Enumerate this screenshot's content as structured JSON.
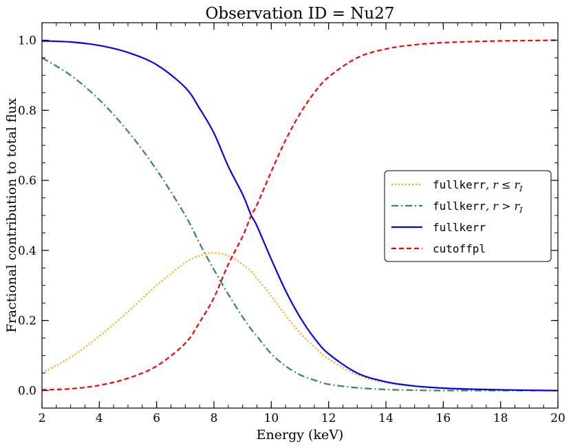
{
  "chart_data": {
    "type": "line",
    "title": "Observation ID = Nu27",
    "xlabel": "Energy (keV)",
    "ylabel": "Fractional contribution to total flux",
    "xlim": [
      2,
      20
    ],
    "ylim": [
      -0.05,
      1.05
    ],
    "xticks": [
      2,
      4,
      6,
      8,
      10,
      12,
      14,
      16,
      18,
      20
    ],
    "xtick_labels": [
      "2",
      "4",
      "6",
      "8",
      "10",
      "12",
      "14",
      "16",
      "18",
      "20"
    ],
    "yticks": [
      0.0,
      0.2,
      0.4,
      0.6,
      0.8,
      1.0
    ],
    "ytick_labels": [
      "0.0",
      "0.2",
      "0.4",
      "0.6",
      "0.8",
      "1.0"
    ],
    "legend_position": "center-right",
    "x": [
      2,
      3,
      4,
      5,
      6,
      7,
      7.5,
      8,
      8.5,
      9,
      9.3,
      9.5,
      10,
      10.5,
      11,
      11.5,
      12,
      13,
      14,
      15,
      16,
      17,
      18,
      19,
      20
    ],
    "series": [
      {
        "name": "fullkerr, r ≤ r_I",
        "legend_mono": "fullkerr",
        "legend_math": ", r ≤ r",
        "legend_sub": "I",
        "color": "#ffa500",
        "dash": "dotted",
        "values": [
          0.05,
          0.095,
          0.155,
          0.225,
          0.3,
          0.365,
          0.385,
          0.393,
          0.385,
          0.36,
          0.34,
          0.32,
          0.27,
          0.215,
          0.165,
          0.125,
          0.09,
          0.045,
          0.022,
          0.012,
          0.006,
          0.003,
          0.002,
          0.001,
          0.0
        ]
      },
      {
        "name": "fullkerr, r > r_I",
        "legend_mono": "fullkerr",
        "legend_math": ", r > r",
        "legend_sub": "I",
        "color": "#2e8b57",
        "dash": "dashdot",
        "values": [
          0.95,
          0.9,
          0.83,
          0.74,
          0.63,
          0.5,
          0.42,
          0.345,
          0.275,
          0.21,
          0.175,
          0.155,
          0.105,
          0.07,
          0.045,
          0.03,
          0.018,
          0.008,
          0.003,
          0.001,
          0.0,
          0.0,
          0.0,
          0.0,
          0.0
        ]
      },
      {
        "name": "fullkerr",
        "legend_mono": "fullkerr",
        "legend_math": "",
        "legend_sub": "",
        "color": "#0000ff",
        "dash": "solid",
        "values": [
          0.998,
          0.995,
          0.985,
          0.965,
          0.93,
          0.865,
          0.805,
          0.735,
          0.64,
          0.56,
          0.5,
          0.47,
          0.375,
          0.285,
          0.21,
          0.15,
          0.105,
          0.05,
          0.025,
          0.013,
          0.007,
          0.004,
          0.002,
          0.001,
          0.0
        ]
      },
      {
        "name": "cutoffpl",
        "legend_mono": "cutoffpl",
        "legend_math": "",
        "legend_sub": "",
        "color": "#ff0000",
        "dash": "dashed",
        "values": [
          0.002,
          0.005,
          0.015,
          0.035,
          0.07,
          0.135,
          0.195,
          0.265,
          0.36,
          0.44,
          0.5,
          0.53,
          0.625,
          0.715,
          0.79,
          0.85,
          0.895,
          0.95,
          0.975,
          0.987,
          0.993,
          0.996,
          0.998,
          0.999,
          1.0
        ]
      }
    ]
  }
}
